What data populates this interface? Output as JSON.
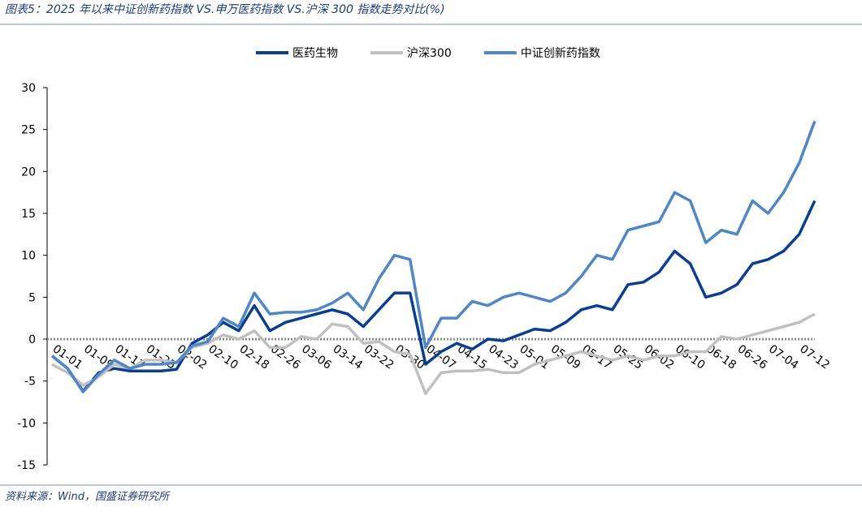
{
  "chart_data": {
    "type": "line",
    "title": "图表5：2025 年以来中证创新药指数 VS.申万医药指数 VS.沪深 300 指数走势对比(%)",
    "source": "资料来源：Wind，国盛证券研究所",
    "categories": [
      "01-01",
      null,
      "01-09",
      null,
      "01-17",
      null,
      "01-25",
      null,
      "02-02",
      null,
      "02-10",
      null,
      "02-18",
      null,
      "02-26",
      null,
      "03-06",
      null,
      "03-14",
      null,
      "03-22",
      null,
      "03-30",
      null,
      "04-07",
      null,
      "04-15",
      null,
      "04-23",
      null,
      "05-01",
      null,
      "05-09",
      null,
      "05-17",
      null,
      "05-25",
      null,
      "06-02",
      null,
      "06-10",
      null,
      "06-18",
      null,
      "06-26",
      null,
      "07-04",
      null,
      "07-12",
      null
    ],
    "series": [
      {
        "name": "医药生物",
        "color": "#0b3d91",
        "values": [
          -2,
          -3.5,
          -6.2,
          -4,
          -3.5,
          -3.8,
          -3.8,
          -3.8,
          -3.6,
          -0.5,
          0.5,
          2,
          1,
          4,
          1,
          2,
          2.5,
          3,
          3.5,
          3,
          1.5,
          3.5,
          5.5,
          5.5,
          -3,
          -1.5,
          -0.5,
          -1.2,
          0,
          -0.2,
          0.5,
          1.2,
          1,
          2,
          3.5,
          4,
          3.5,
          6.5,
          6.8,
          8,
          10.5,
          9,
          5,
          5.5,
          6.5,
          9,
          9.5,
          10.5,
          12.5,
          16.5
        ]
      },
      {
        "name": "沪深300",
        "color": "#c0c0c0",
        "values": [
          -3,
          -4,
          -5.5,
          -4.5,
          -3,
          -3.5,
          -2.5,
          -2.5,
          -2.8,
          -1,
          -0.5,
          0.5,
          0,
          1,
          -1,
          -1,
          0.3,
          0,
          1.8,
          1.5,
          -0.5,
          -0.3,
          -1.5,
          -1.8,
          -6.5,
          -4,
          -3.8,
          -3.8,
          -3.6,
          -4,
          -4,
          -3,
          -2.5,
          -2,
          -1.5,
          -2,
          -2.5,
          -2,
          -2.5,
          -2,
          -2,
          -1.5,
          -1.5,
          0.3,
          0,
          0.5,
          1,
          1.5,
          2,
          3
        ]
      },
      {
        "name": "中证创新药指数",
        "color": "#4f86c6",
        "values": [
          -2,
          -3.5,
          -6.3,
          -4.2,
          -2.5,
          -3.5,
          -3,
          -3,
          -2.8,
          -0.8,
          -0.3,
          2.5,
          1.5,
          5.5,
          3,
          3.2,
          3.2,
          3.5,
          4.3,
          5.5,
          3.5,
          7.2,
          10,
          9.5,
          -1,
          2.5,
          2.5,
          4.5,
          4,
          5,
          5.5,
          5,
          4.5,
          5.5,
          7.5,
          10,
          9.5,
          13,
          13.5,
          14,
          17.5,
          16.5,
          11.5,
          13,
          12.5,
          16.5,
          15,
          17.5,
          21,
          26
        ]
      }
    ],
    "ylim": [
      -15,
      30
    ],
    "yticks": [
      -15,
      -10,
      -5,
      0,
      5,
      10,
      15,
      20,
      25,
      30
    ]
  }
}
